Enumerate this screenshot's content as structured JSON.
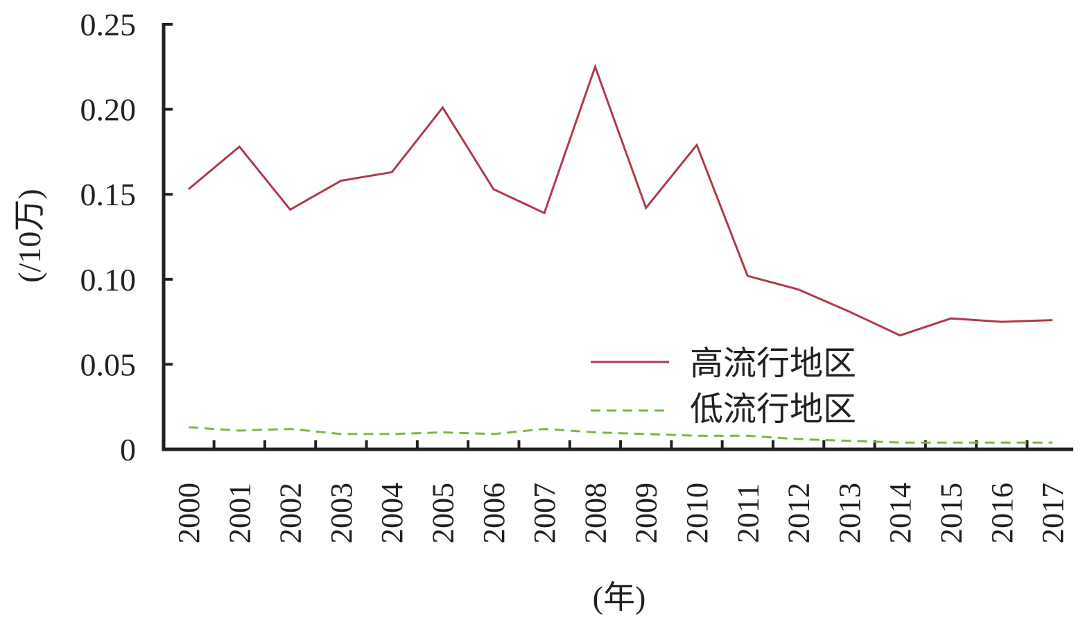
{
  "chart_data": {
    "type": "line",
    "title": "",
    "xlabel": "(年)",
    "ylabel": "(/10万)",
    "x": [
      "2000",
      "2001",
      "2002",
      "2003",
      "2004",
      "2005",
      "2006",
      "2007",
      "2008",
      "2009",
      "2010",
      "2011",
      "2012",
      "2013",
      "2014",
      "2015",
      "2016",
      "2017"
    ],
    "ylim": [
      0,
      0.25
    ],
    "yticks": [
      "0",
      "0.05",
      "0.10",
      "0.15",
      "0.20",
      "0.25"
    ],
    "yticks_values": [
      0,
      0.05,
      0.1,
      0.15,
      0.2,
      0.25
    ],
    "grid": false,
    "legend_position": "lower-right",
    "series": [
      {
        "name": "高流行地区",
        "style": "solid",
        "color": "#b0394b",
        "values": [
          0.153,
          0.178,
          0.141,
          0.158,
          0.163,
          0.201,
          0.153,
          0.139,
          0.225,
          0.142,
          0.179,
          0.102,
          0.094,
          0.081,
          0.067,
          0.077,
          0.075,
          0.076
        ]
      },
      {
        "name": "低流行地区",
        "style": "dashed",
        "color": "#7ab648",
        "values": [
          0.013,
          0.011,
          0.012,
          0.009,
          0.009,
          0.01,
          0.009,
          0.012,
          0.01,
          0.009,
          0.008,
          0.008,
          0.006,
          0.005,
          0.004,
          0.004,
          0.004,
          0.004
        ]
      }
    ]
  }
}
